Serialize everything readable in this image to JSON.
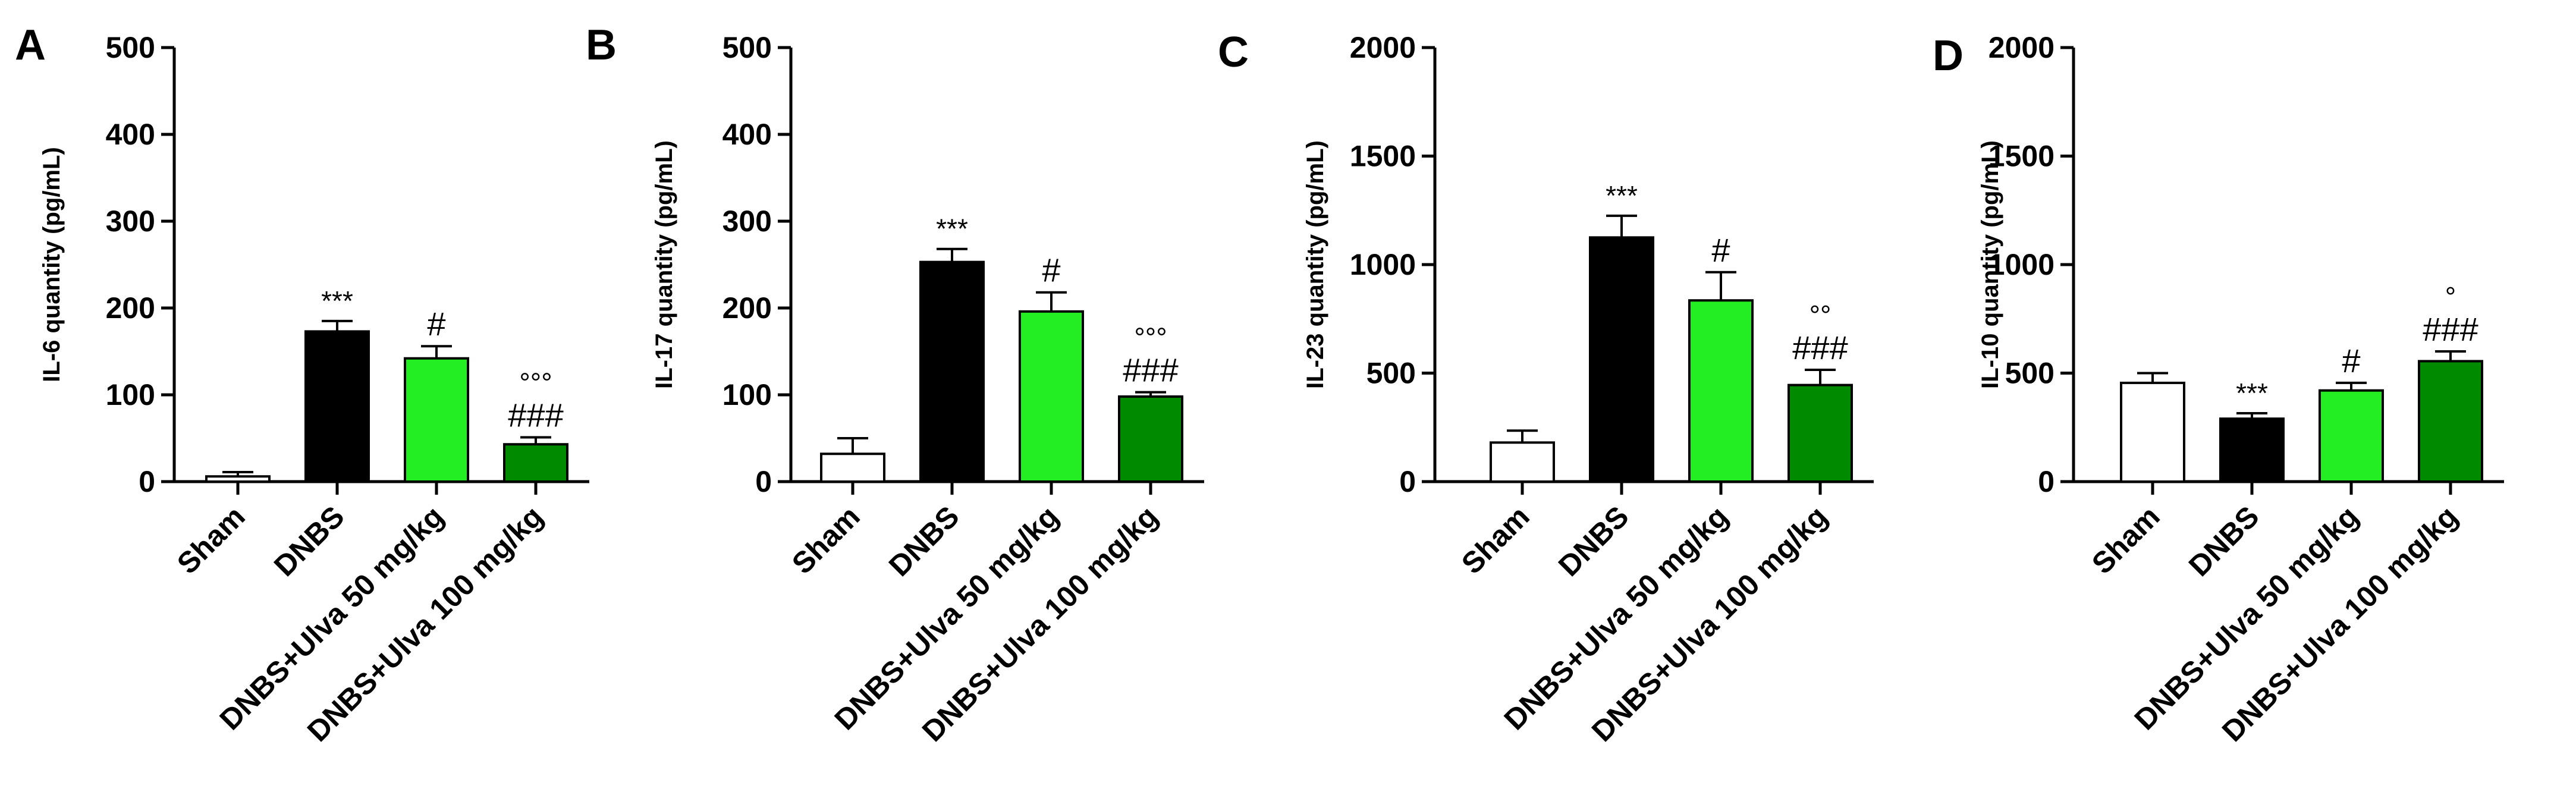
{
  "chart_data": [
    {
      "type": "bar",
      "panel": "A",
      "ylabel": "IL-6 quantity (pg/mL)",
      "ylim": [
        0,
        500
      ],
      "yticks": [
        0,
        100,
        200,
        300,
        400,
        500
      ],
      "categories": [
        "Sham",
        "DNBS",
        "DNBS+Ulva 50 mg/kg",
        "DNBS+Ulva 100 mg/kg"
      ],
      "values": [
        6,
        173,
        142,
        43
      ],
      "errors": [
        5,
        12,
        14,
        8
      ],
      "colors": [
        "#ffffff",
        "#000000",
        "#22ee22",
        "#008a00"
      ],
      "annotations": [
        [
          ""
        ],
        [
          "***"
        ],
        [
          "#"
        ],
        [
          "###",
          "°°°"
        ]
      ]
    },
    {
      "type": "bar",
      "panel": "B",
      "ylabel": "IL-17 quantity (pg/mL)",
      "ylim": [
        0,
        500
      ],
      "yticks": [
        0,
        100,
        200,
        300,
        400,
        500
      ],
      "categories": [
        "Sham",
        "DNBS",
        "DNBS+Ulva 50 mg/kg",
        "DNBS+Ulva 100 mg/kg"
      ],
      "values": [
        32,
        253,
        196,
        98
      ],
      "errors": [
        18,
        15,
        22,
        5
      ],
      "colors": [
        "#ffffff",
        "#000000",
        "#22ee22",
        "#008a00"
      ],
      "annotations": [
        [
          ""
        ],
        [
          "***"
        ],
        [
          "#"
        ],
        [
          "###",
          "°°°"
        ]
      ]
    },
    {
      "type": "bar",
      "panel": "C",
      "ylabel": "IL-23 quantity (pg/mL)",
      "ylim": [
        0,
        2000
      ],
      "yticks": [
        0,
        500,
        1000,
        1500,
        2000
      ],
      "categories": [
        "Sham",
        "DNBS",
        "DNBS+Ulva 50 mg/kg",
        "DNBS+Ulva 100 mg/kg"
      ],
      "values": [
        180,
        1125,
        835,
        445
      ],
      "errors": [
        55,
        100,
        130,
        70
      ],
      "colors": [
        "#ffffff",
        "#000000",
        "#22ee22",
        "#008a00"
      ],
      "annotations": [
        [
          ""
        ],
        [
          "***"
        ],
        [
          "#"
        ],
        [
          "###",
          "°°"
        ]
      ]
    },
    {
      "type": "bar",
      "panel": "D",
      "ylabel": "IL-10 quantity (pg/mL)",
      "ylim": [
        0,
        2000
      ],
      "yticks": [
        0,
        500,
        1000,
        1500,
        2000
      ],
      "categories": [
        "Sham",
        "DNBS",
        "DNBS+Ulva 50 mg/kg",
        "DNBS+Ulva 100 mg/kg"
      ],
      "values": [
        455,
        290,
        420,
        555
      ],
      "errors": [
        45,
        25,
        35,
        45
      ],
      "colors": [
        "#ffffff",
        "#000000",
        "#22ee22",
        "#008a00"
      ],
      "annotations": [
        [
          ""
        ],
        [
          "***"
        ],
        [
          "#"
        ],
        [
          "###",
          "°"
        ]
      ]
    }
  ]
}
